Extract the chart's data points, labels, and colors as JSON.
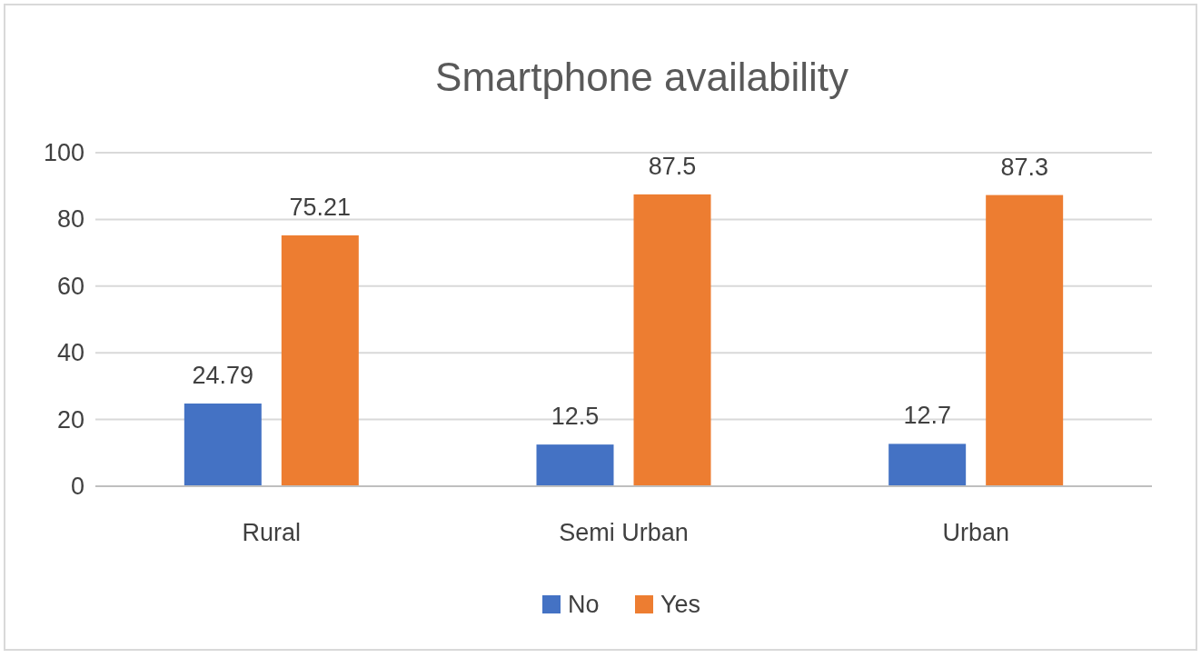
{
  "chart_data": {
    "type": "bar",
    "title": "Smartphone availability",
    "categories": [
      "Rural",
      "Semi Urban",
      "Urban"
    ],
    "series": [
      {
        "name": "No",
        "color": "#4472c4",
        "values": [
          24.79,
          12.5,
          12.7
        ]
      },
      {
        "name": "Yes",
        "color": "#ed7d31",
        "values": [
          75.21,
          87.5,
          87.3
        ]
      }
    ],
    "ylim": [
      0,
      100
    ],
    "yticks": [
      0,
      20,
      40,
      60,
      80,
      100
    ],
    "grid": "y",
    "legend": "bottom",
    "data_labels": true
  }
}
